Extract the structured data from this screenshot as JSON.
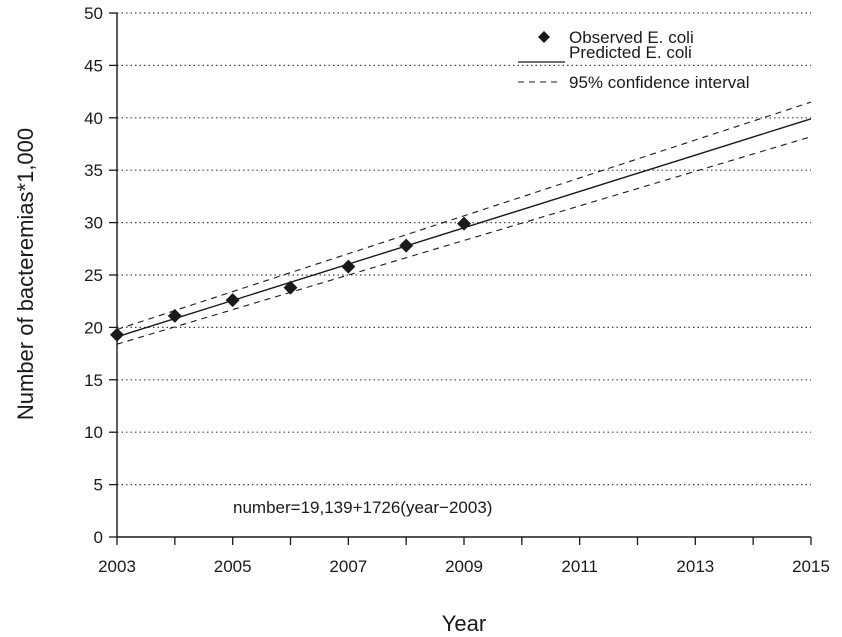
{
  "chart_data": {
    "type": "scatter",
    "title": "",
    "xlabel": "Year",
    "ylabel": "Number of bacteremias*1,000",
    "xlim": [
      2003,
      2015
    ],
    "ylim": [
      0,
      50
    ],
    "x_ticks": [
      "2003",
      "2005",
      "2007",
      "2009",
      "2011",
      "2013",
      "2015"
    ],
    "y_ticks": [
      "0",
      "5",
      "10",
      "15",
      "20",
      "25",
      "30",
      "35",
      "40",
      "45",
      "50"
    ],
    "grid": "horizontal dotted",
    "legend_position": "top-right",
    "series": [
      {
        "name": "Observed E. coli",
        "kind": "scatter",
        "marker": "diamond",
        "x": [
          2003,
          2004,
          2005,
          2006,
          2007,
          2008,
          2009
        ],
        "y": [
          19.3,
          21.1,
          22.6,
          23.8,
          25.8,
          27.8,
          29.9
        ]
      },
      {
        "name": "Predicted E. coli",
        "kind": "line",
        "dash": "solid",
        "x": [
          2003,
          2015
        ],
        "y": [
          19.1,
          39.9
        ]
      },
      {
        "name": "95% confidence interval",
        "kind": "line",
        "dash": "dashed",
        "x": [
          2003,
          2015
        ],
        "y": [
          19.8,
          41.5
        ]
      },
      {
        "name": "",
        "kind": "line",
        "dash": "dashed",
        "x": [
          2003,
          2015
        ],
        "y": [
          18.4,
          38.2
        ]
      }
    ],
    "annotation": "number=19,139+1726(year−2003)"
  }
}
